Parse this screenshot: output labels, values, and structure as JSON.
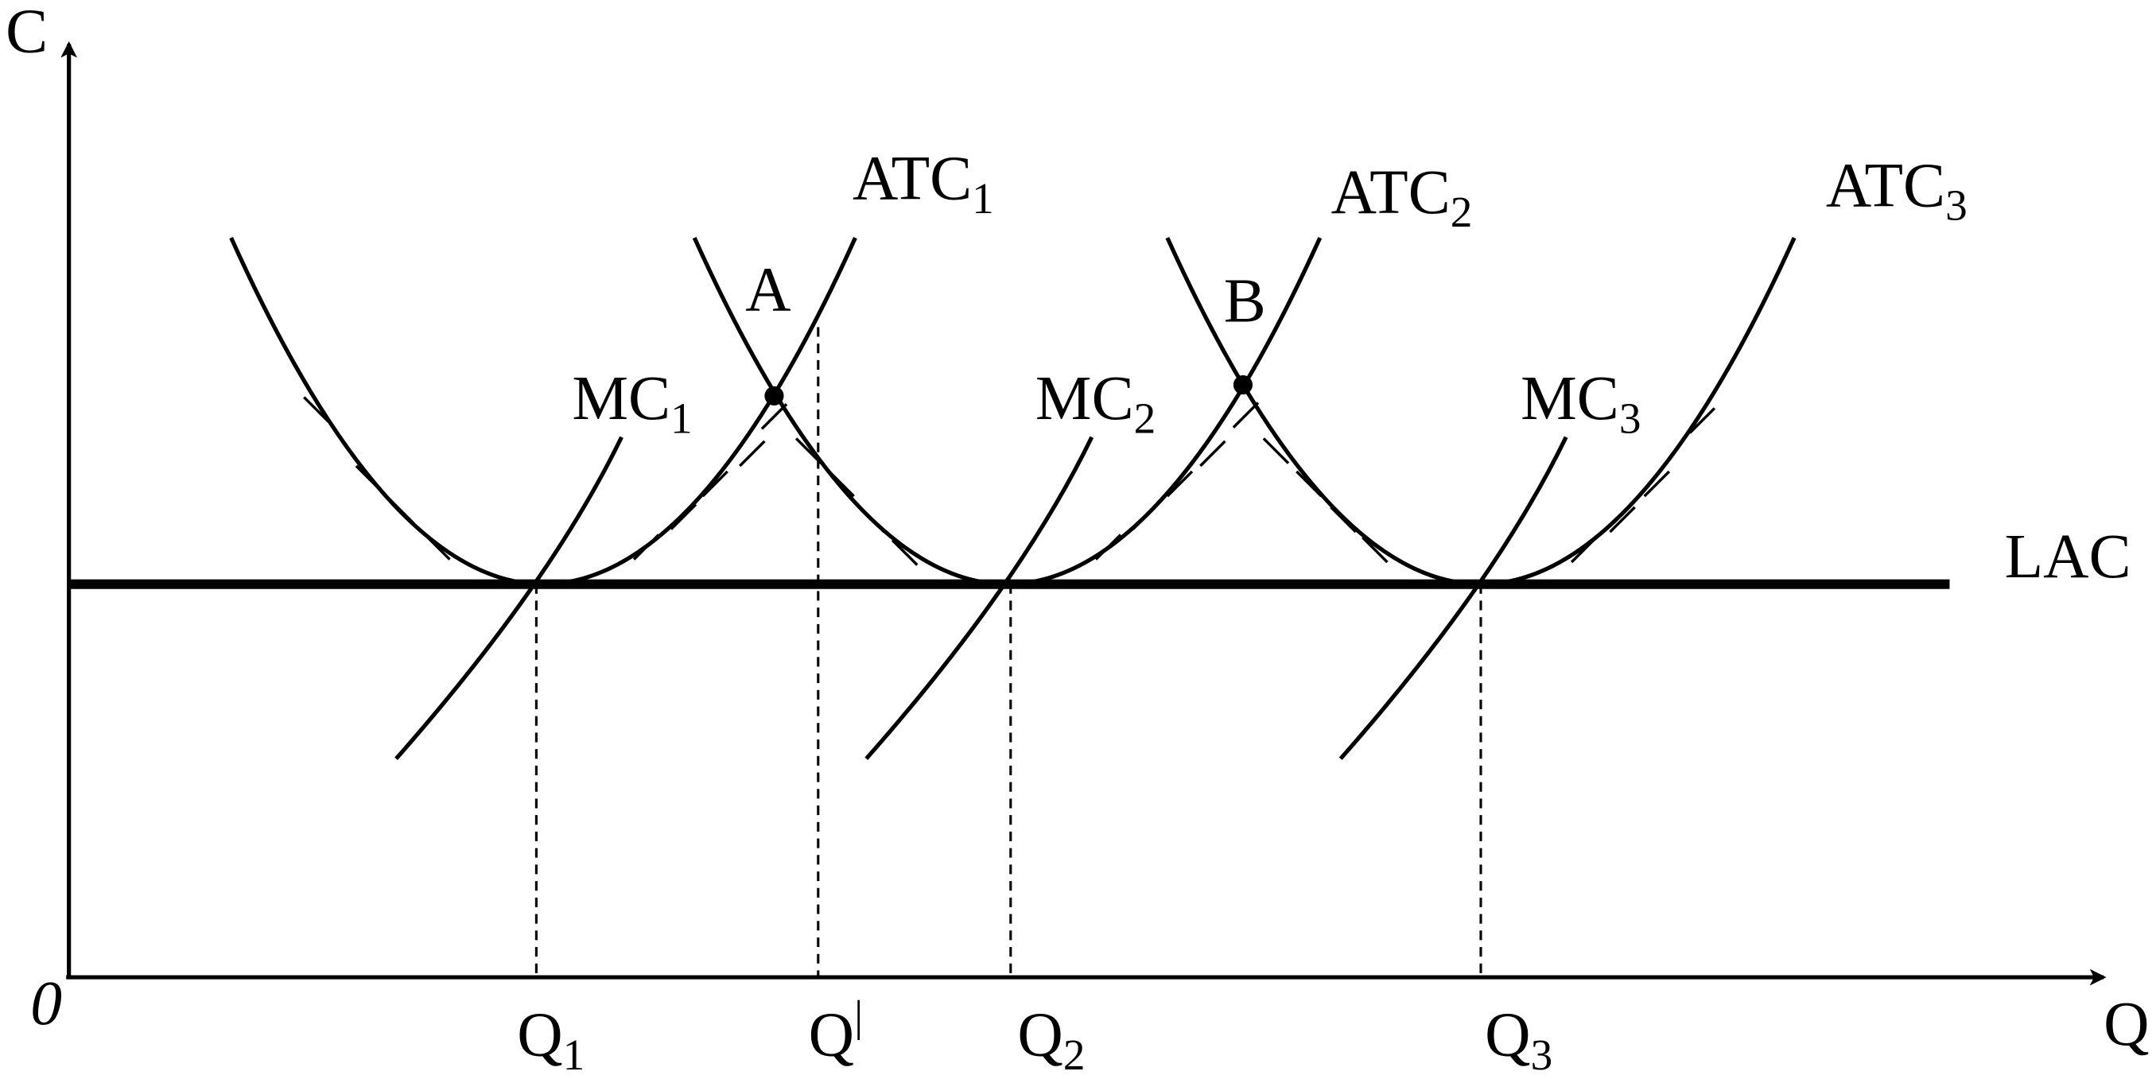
{
  "axes": {
    "y": "C",
    "x": "Q",
    "origin": "0"
  },
  "curves": {
    "atc": [
      {
        "base": "ATC",
        "sub": "1"
      },
      {
        "base": "ATC",
        "sub": "2"
      },
      {
        "base": "ATC",
        "sub": "3"
      }
    ],
    "mc": [
      {
        "base": "MC",
        "sub": "1"
      },
      {
        "base": "MC",
        "sub": "2"
      },
      {
        "base": "MC",
        "sub": "3"
      }
    ],
    "lac": "LAC"
  },
  "points": [
    "A",
    "B"
  ],
  "quantities": [
    {
      "base": "Q",
      "sub": "1"
    },
    {
      "base": "Q",
      "sup": "|"
    },
    {
      "base": "Q",
      "sub": "2"
    },
    {
      "base": "Q",
      "sub": "3"
    }
  ]
}
